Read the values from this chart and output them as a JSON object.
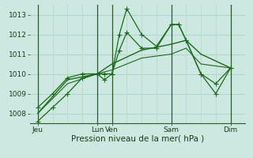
{
  "background_color": "#cce8e0",
  "grid_color": "#b0d4cc",
  "line_color": "#1a6b1a",
  "xlabel": "Pression niveau de la mer( hPa )",
  "ylim": [
    1007.5,
    1013.5
  ],
  "yticks": [
    1008,
    1009,
    1010,
    1011,
    1012,
    1013
  ],
  "xlabel_fontsize": 7.5,
  "tick_fontsize": 6.5,
  "vline_color": "#2d5a2d",
  "vline_positions": [
    0.0,
    4.0,
    5.0,
    9.0,
    13.0
  ],
  "xtick_major": [
    0.0,
    4.0,
    5.0,
    9.0,
    13.0
  ],
  "xtick_major_labels": [
    "Jeu",
    "Lun",
    "Ven",
    "Sam",
    "Dim"
  ],
  "xlim": [
    -0.5,
    14.0
  ],
  "series": [
    {
      "x": [
        0,
        1,
        2,
        3,
        4,
        4.5,
        5,
        5.5,
        6,
        7,
        8,
        9,
        9.5,
        10,
        11,
        12,
        13
      ],
      "y": [
        1007.6,
        1008.3,
        1009.0,
        1009.8,
        1010.0,
        1009.7,
        1010.0,
        1012.0,
        1013.3,
        1012.0,
        1011.4,
        1012.5,
        1012.5,
        1011.7,
        1010.0,
        1009.0,
        1010.3
      ],
      "lw": 0.9,
      "ls": "-",
      "marker": "+",
      "ms": 4
    },
    {
      "x": [
        0,
        1,
        2,
        3,
        4,
        4.5,
        5,
        5.5,
        6,
        7,
        8,
        9,
        9.5,
        10,
        11,
        12,
        13
      ],
      "y": [
        1008.3,
        1009.0,
        1009.8,
        1010.0,
        1010.0,
        1010.0,
        1010.0,
        1011.2,
        1012.1,
        1011.3,
        1011.3,
        1012.5,
        1012.5,
        1011.7,
        1010.0,
        1009.5,
        1010.3
      ],
      "lw": 0.9,
      "ls": "-",
      "marker": "+",
      "ms": 4
    },
    {
      "x": [
        0,
        2,
        4,
        5,
        7,
        9,
        10,
        11,
        13
      ],
      "y": [
        1008.0,
        1009.7,
        1010.0,
        1010.5,
        1011.2,
        1011.5,
        1011.7,
        1011.0,
        1010.3
      ],
      "lw": 1.0,
      "ls": "-",
      "marker": null,
      "ms": 0
    },
    {
      "x": [
        0,
        2,
        4,
        5,
        7,
        9,
        10,
        11,
        13
      ],
      "y": [
        1008.0,
        1009.5,
        1010.0,
        1010.2,
        1010.8,
        1011.0,
        1011.3,
        1010.5,
        1010.3
      ],
      "lw": 0.8,
      "ls": "-",
      "marker": null,
      "ms": 0
    }
  ],
  "minor_vlines": [
    1,
    2,
    3,
    6,
    7,
    8,
    10,
    11,
    12
  ],
  "minor_vline_color": "#c0d8d0"
}
